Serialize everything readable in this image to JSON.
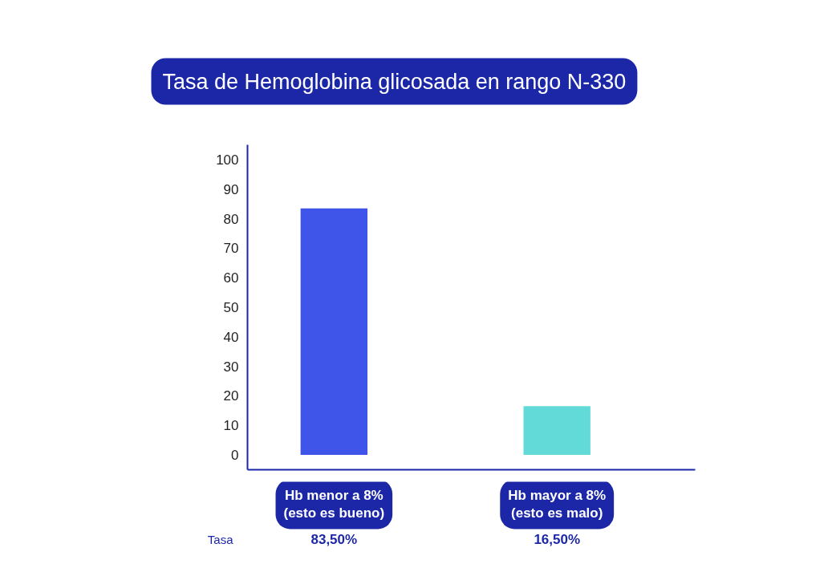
{
  "chart_data": {
    "type": "bar",
    "title": "Tasa de Hemoglobina glicosada en rango N-330",
    "categories": [
      "Hb menor a 8%\n(esto es bueno)",
      "Hb mayor a 8%\n(esto es malo)"
    ],
    "values": [
      83.5,
      16.5
    ],
    "colors": [
      "#3f55ea",
      "#62dbd8"
    ],
    "value_labels": [
      "83,50%",
      "16,50%"
    ],
    "annotations": [
      "Tasa"
    ],
    "ylim": [
      -5,
      105
    ],
    "yticks": [
      0,
      10,
      20,
      30,
      40,
      50,
      60,
      70,
      80,
      90,
      100
    ],
    "grid": false
  }
}
